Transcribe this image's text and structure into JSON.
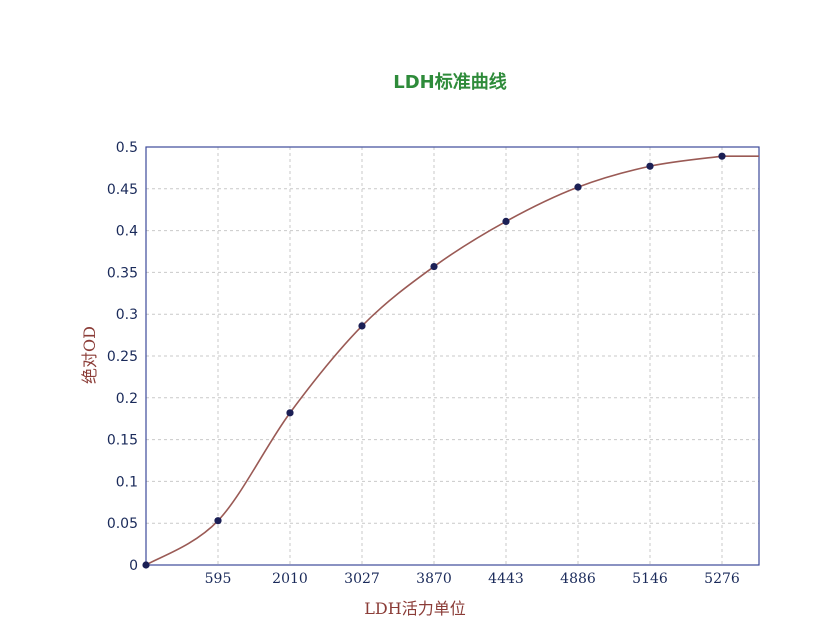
{
  "chart_data": {
    "type": "line",
    "title": "LDH标准曲线",
    "xlabel": "LDH活力单位",
    "ylabel": "绝对OD",
    "categories": [
      "0",
      "595",
      "2010",
      "3027",
      "3870",
      "4443",
      "4886",
      "5146",
      "5276"
    ],
    "x_tick_labels": [
      "595",
      "2010",
      "3027",
      "3870",
      "4443",
      "4886",
      "5146",
      "5276"
    ],
    "y_ticks": [
      "0",
      "0.05",
      "0.1",
      "0.15",
      "0.2",
      "0.25",
      "0.3",
      "0.35",
      "0.4",
      "0.45",
      "0.5"
    ],
    "ylim": [
      0,
      0.5
    ],
    "grid": true,
    "series": [
      {
        "values": [
          0,
          0.053,
          0.182,
          0.286,
          0.357,
          0.411,
          0.452,
          0.477,
          0.489
        ]
      }
    ],
    "colors": {
      "title": "#2e8b3a",
      "axis_label": "#8b3c37",
      "tick_label": "#1a2a5a",
      "curve": "#9a5a55",
      "point": "#1b1f55",
      "frame": "#3c4a9a",
      "grid": "#c9c9c9"
    }
  }
}
